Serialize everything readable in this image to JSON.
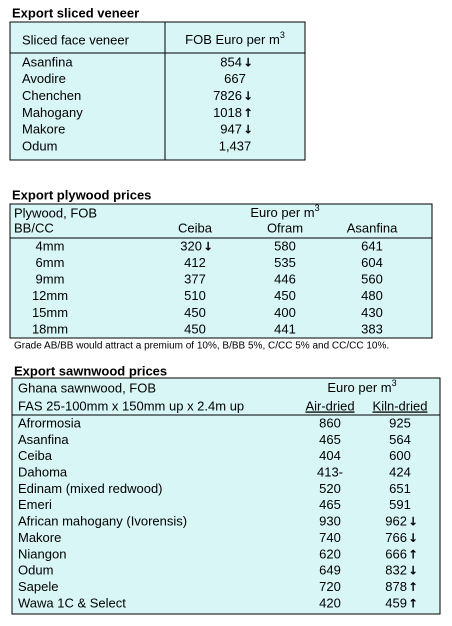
{
  "veneer": {
    "title": "Export sliced veneer",
    "header": [
      "Sliced face veneer",
      "FOB Euro per m"
    ],
    "unit_sup": "3",
    "rows": [
      {
        "name": "Asanfina",
        "price": 854,
        "arrow": "↓"
      },
      {
        "name": "Avodire",
        "price": 667
      },
      {
        "name": "Chenchen",
        "price": 7826,
        "arrow": "↓"
      },
      {
        "name": "Mahogany",
        "price": 1018,
        "arrow": "↑"
      },
      {
        "name": "Makore",
        "price": 947,
        "arrow": "↓"
      },
      {
        "name": "Odum",
        "price": "1,437"
      }
    ]
  },
  "plywood": {
    "title": "Export plywood prices",
    "header": "Plywood, FOB",
    "unit": "Euro per m",
    "unit_sup": "3",
    "grade": "BB/CC",
    "columns": [
      "Ceiba",
      "Ofram",
      "Asanfina"
    ],
    "rows": [
      {
        "size": "4mm",
        "prices": [
          320,
          580,
          641
        ],
        "arrows": {
          "0": "↓"
        }
      },
      {
        "size": "6mm",
        "prices": [
          412,
          535,
          604
        ]
      },
      {
        "size": "9mm",
        "prices": [
          377,
          446,
          560
        ]
      },
      {
        "size": "12mm",
        "prices": [
          510,
          450,
          480
        ]
      },
      {
        "size": "15mm",
        "prices": [
          450,
          400,
          430
        ]
      },
      {
        "size": "18mm",
        "prices": [
          450,
          441,
          383
        ]
      }
    ],
    "note": "Grade AB/BB would attract a premium of 10%, B/BB 5%, C/CC 5% and CC/CC 10%."
  },
  "sawnwood": {
    "title": "Export sawnwood prices",
    "header": "Ghana sawnwood, FOB",
    "unit": "Euro per m",
    "unit_sup": "3",
    "spec": "FAS 25-100mm x 150mm up x 2.4m up",
    "columns": [
      "Air-dried",
      "Kiln-dried"
    ],
    "rows": [
      {
        "name": "Afrormosia",
        "prices": [
          860,
          925
        ]
      },
      {
        "name": "Asanfina",
        "prices": [
          465,
          564
        ]
      },
      {
        "name": "Ceiba",
        "prices": [
          404,
          600
        ]
      },
      {
        "name": "Dahoma",
        "prices": [
          "413-",
          424
        ]
      },
      {
        "name": "Edinam (mixed redwood)",
        "prices": [
          520,
          651
        ]
      },
      {
        "name": "Emeri",
        "prices": [
          465,
          591
        ]
      },
      {
        "name": "African mahogany (Ivorensis)",
        "prices": [
          930,
          962
        ],
        "arrows": {
          "1": "↓"
        }
      },
      {
        "name": "Makore",
        "prices": [
          740,
          766
        ],
        "arrows": {
          "1": "↓"
        }
      },
      {
        "name": "Niangon",
        "prices": [
          620,
          666
        ],
        "arrows": {
          "1": "↑"
        }
      },
      {
        "name": "Odum",
        "prices": [
          649,
          832
        ],
        "arrows": {
          "1": "↓"
        }
      },
      {
        "name": "Sapele",
        "prices": [
          720,
          878
        ],
        "arrows": {
          "1": "↑"
        }
      },
      {
        "name": "Wawa 1C & Select",
        "prices": [
          420,
          459
        ],
        "arrows": {
          "1": "↑"
        }
      }
    ]
  }
}
